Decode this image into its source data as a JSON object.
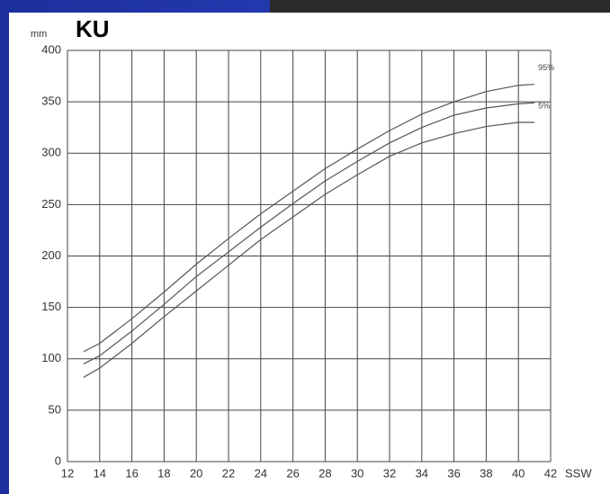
{
  "chart_data": {
    "type": "line",
    "title": "KU",
    "y_label": "mm",
    "x_label": "SSW",
    "x": [
      13,
      14,
      16,
      18,
      20,
      22,
      24,
      26,
      28,
      30,
      32,
      34,
      36,
      38,
      40,
      41
    ],
    "series": [
      {
        "name": "95%",
        "color": "#555555",
        "values": [
          107,
          115,
          139,
          165,
          192,
          217,
          241,
          263,
          285,
          304,
          322,
          338,
          350,
          360,
          366,
          367
        ]
      },
      {
        "color": "#555555",
        "values": [
          95,
          103,
          127,
          153,
          180,
          204,
          228,
          251,
          273,
          292,
          310,
          325,
          337,
          344,
          348,
          349
        ]
      },
      {
        "name": "5%",
        "color": "#555555",
        "values": [
          82,
          91,
          115,
          141,
          166,
          191,
          216,
          238,
          260,
          279,
          297,
          310,
          319,
          326,
          330,
          330
        ]
      }
    ],
    "xlim": [
      12,
      42
    ],
    "xticks": [
      12,
      14,
      16,
      18,
      20,
      22,
      24,
      26,
      28,
      30,
      32,
      34,
      36,
      38,
      40,
      42
    ],
    "ylim": [
      0,
      400
    ],
    "yticks": [
      0,
      50,
      100,
      150,
      200,
      250,
      300,
      350,
      400
    ],
    "grid": true
  }
}
